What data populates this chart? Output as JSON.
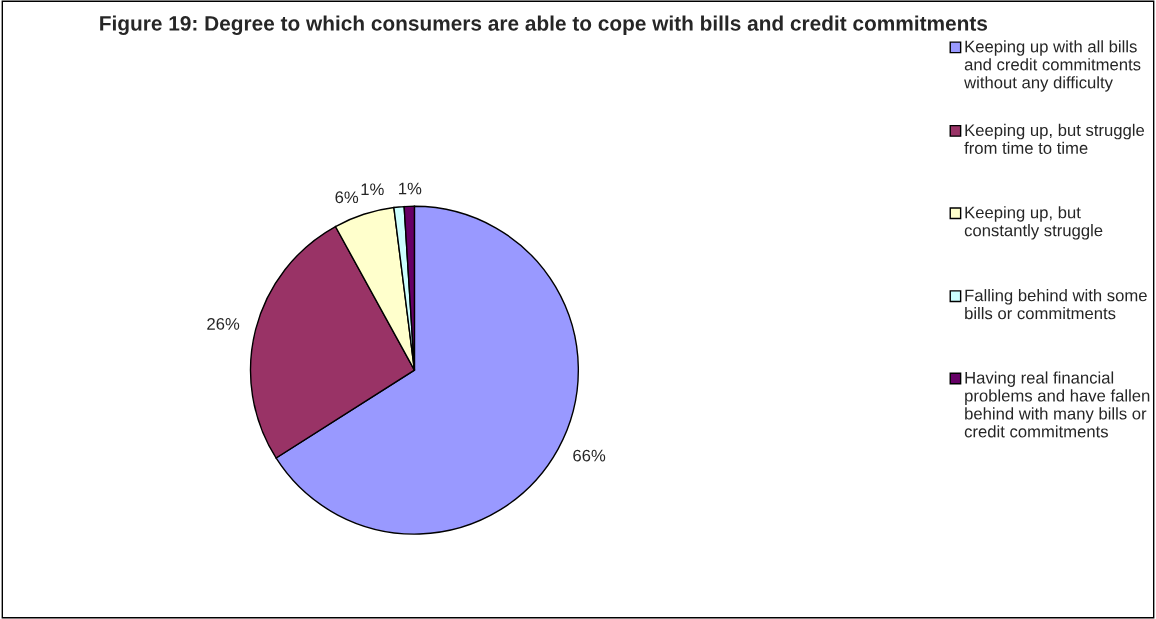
{
  "chart_data": {
    "type": "pie",
    "title": "Figure 19: Degree to which consumers are able to cope with bills and credit commitments",
    "categories": [
      "Keeping up with all bills and credit commitments without any difficulty",
      "Keeping up, but struggle from time to time",
      "Keeping up, but constantly struggle",
      "Falling behind with some bills or commitments",
      "Having real financial problems and have fallen behind with many bills or credit commitments"
    ],
    "values": [
      66,
      26,
      6,
      1,
      1
    ],
    "value_labels": [
      "66%",
      "26%",
      "6%",
      "1%",
      "1%"
    ],
    "colors": [
      "#9999ff",
      "#993366",
      "#ffffcc",
      "#ccffff",
      "#660066"
    ],
    "legend": "right"
  }
}
